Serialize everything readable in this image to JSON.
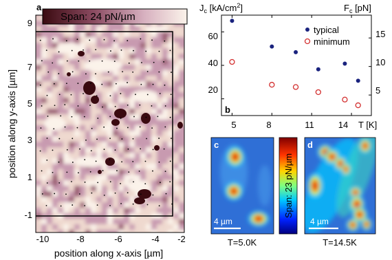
{
  "panel_a": {
    "label": "a",
    "span_label": "Span: 24 pN/µm",
    "xlabel": "position along x-axis [µm]",
    "ylabel": "position along y-axis [µm]",
    "x_ticks": [
      "-10",
      "-8",
      "-6",
      "-4",
      "-2"
    ],
    "y_ticks": [
      "9",
      "7",
      "5",
      "3",
      "1",
      "-1"
    ],
    "colormap": [
      "#3a0a10",
      "#6b2a3a",
      "#9b5f75",
      "#c89ab0",
      "#efd9cf",
      "#fbf3ea"
    ]
  },
  "panel_b": {
    "label": "b",
    "left_axis_label": "J",
    "left_axis_sub": "c",
    "left_axis_unit": " [kA/cm",
    "left_axis_sup": "2",
    "left_axis_close": "]",
    "right_axis_label": "F",
    "right_axis_sub": "c",
    "right_axis_unit": " [pN]",
    "x_axis_label": "T [K]",
    "x_ticks": [
      "5",
      "8",
      "11",
      "14"
    ],
    "left_ticks": [
      "20",
      "40",
      "60"
    ],
    "right_ticks": [
      "5",
      "10",
      "15"
    ],
    "legend": {
      "typical": "typical",
      "minimum": "minimum"
    },
    "colors": {
      "typical": "#1a237e",
      "minimum": "#d32f2f"
    }
  },
  "panel_c": {
    "label": "c",
    "scalebar": "4 µm",
    "caption": "T=5.0K"
  },
  "panel_d": {
    "label": "d",
    "scalebar": "4 µm",
    "caption": "T=14.5K"
  },
  "colorbar_cd": {
    "label": "Span: 23 pN/µm",
    "colormap": [
      "#00007f",
      "#0055ff",
      "#00d4ff",
      "#7fff7f",
      "#ffd400",
      "#ff3300",
      "#7f0000"
    ]
  },
  "chart_data": {
    "type": "scatter",
    "x": [
      5,
      8,
      9.8,
      11.5,
      13.5,
      14.5
    ],
    "xlabel": "T [K]",
    "xlim": [
      4.2,
      15.5
    ],
    "ylabel": "Jc [kA/cm2]",
    "ylim": [
      10,
      70
    ],
    "y2label": "Fc [pN]",
    "y2lim": [
      1.4,
      19
    ],
    "series": [
      {
        "name": "typical",
        "axis": "right",
        "marker": "filled-circle",
        "values": [
          18,
          13.5,
          12.5,
          9.5,
          10.5,
          7.5
        ]
      },
      {
        "name": "minimum",
        "axis": "right",
        "marker": "open-circle",
        "values": [
          10.8,
          6.8,
          6.4,
          5.5,
          4.2,
          3.2
        ]
      }
    ]
  }
}
